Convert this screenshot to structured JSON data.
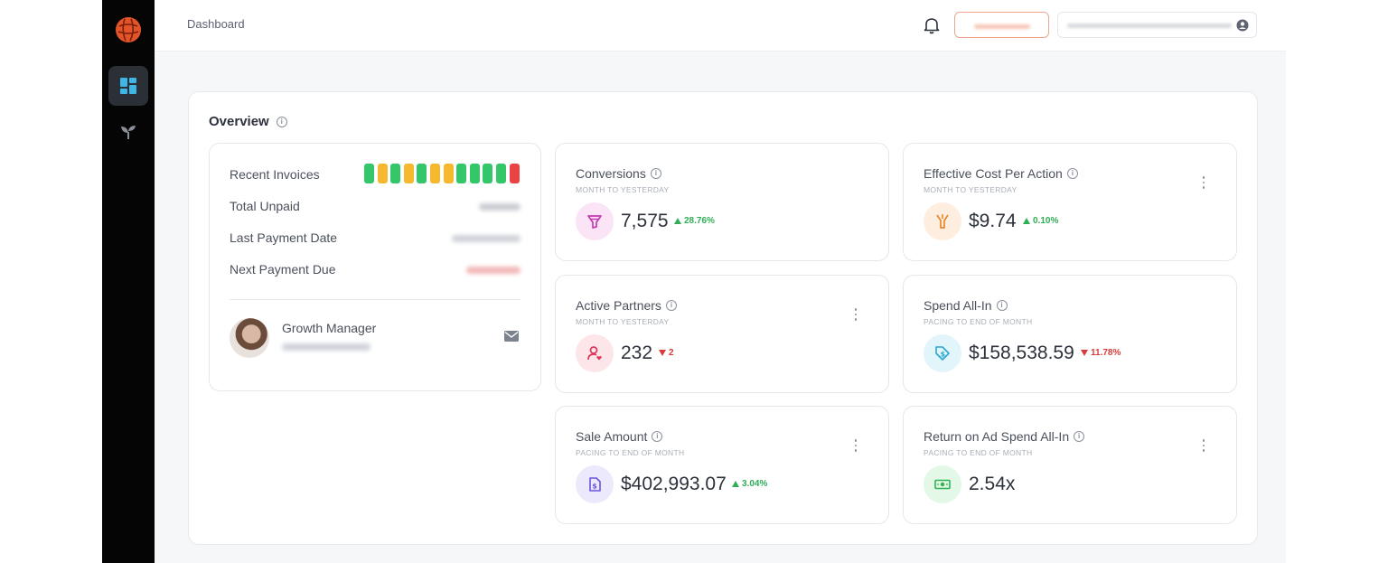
{
  "header": {
    "breadcrumb": "Dashboard"
  },
  "overview": {
    "title": "Overview"
  },
  "invoices": {
    "recent_label": "Recent Invoices",
    "status_bars": [
      "#34c76a",
      "#f5b82e",
      "#34c76a",
      "#f5b82e",
      "#34c76a",
      "#f5b82e",
      "#f5b82e",
      "#34c76a",
      "#34c76a",
      "#34c76a",
      "#34c76a",
      "#ea4343"
    ],
    "total_unpaid_label": "Total Unpaid",
    "last_payment_label": "Last Payment Date",
    "next_payment_label": "Next Payment Due"
  },
  "manager": {
    "role": "Growth Manager"
  },
  "metrics": {
    "conversions": {
      "title": "Conversions",
      "sub": "MONTH TO YESTERDAY",
      "value": "7,575",
      "delta": "28.76%",
      "trend": "up",
      "icon": "funnel-icon",
      "icon_bg": "#fbe4f6",
      "icon_color": "#c43bb0"
    },
    "ecpa": {
      "title": "Effective Cost Per Action",
      "sub": "MONTH TO YESTERDAY",
      "value": "$9.74",
      "delta": "0.10%",
      "trend": "up",
      "icon": "cost-icon",
      "icon_bg": "#fdeee0",
      "icon_color": "#e8872d"
    },
    "partners": {
      "title": "Active Partners",
      "sub": "MONTH TO YESTERDAY",
      "value": "232",
      "delta": "2",
      "trend": "down",
      "icon": "partner-icon",
      "icon_bg": "#fde6ea",
      "icon_color": "#e0375a"
    },
    "spend": {
      "title": "Spend All-In",
      "sub": "PACING TO END OF MONTH",
      "value": "$158,538.59",
      "delta": "11.78%",
      "trend": "down",
      "icon": "tag-dollar-icon",
      "icon_bg": "#e2f5fb",
      "icon_color": "#2aa6cf"
    },
    "sale": {
      "title": "Sale Amount",
      "sub": "PACING TO END OF MONTH",
      "value": "$402,993.07",
      "delta": "3.04%",
      "trend": "up",
      "icon": "sale-icon",
      "icon_bg": "#ece9fd",
      "icon_color": "#6b55e0"
    },
    "roas": {
      "title": "Return on Ad Spend All-In",
      "sub": "PACING TO END OF MONTH",
      "value": "2.54x",
      "icon": "cash-icon",
      "icon_bg": "#e3f8e6",
      "icon_color": "#2fb24f"
    }
  }
}
